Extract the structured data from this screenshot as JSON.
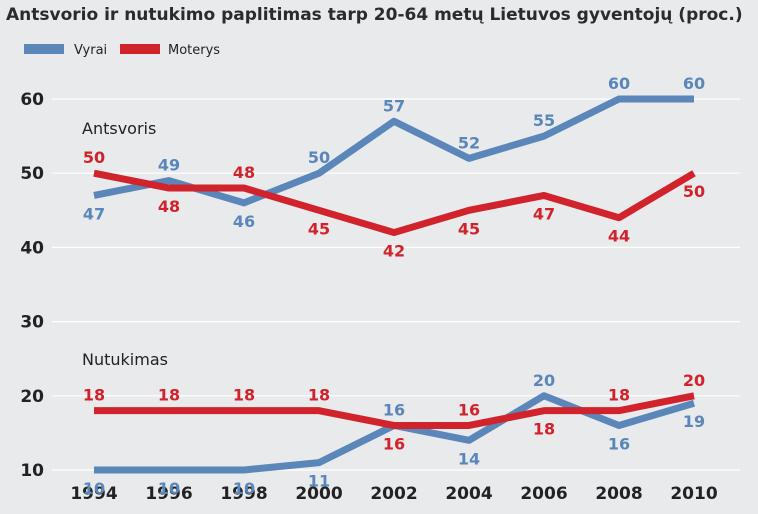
{
  "colors": {
    "vyrai": "#5b86b9",
    "moterys": "#d1232b",
    "background": "#e8eaec",
    "grid": "#ffffff"
  },
  "chart_data": {
    "type": "line",
    "title": "Antsvorio ir nutukimo paplitimas tarp 20-64 metų Lietuvos gyventojų (proc.)",
    "x": [
      1994,
      1996,
      1998,
      2000,
      2002,
      2004,
      2006,
      2008,
      2010
    ],
    "ylim": [
      10,
      60
    ],
    "yticks": [
      10,
      20,
      30,
      40,
      50,
      60
    ],
    "grid": true,
    "legend": [
      "Vyrai",
      "Moterys"
    ],
    "legend_position": "top-left",
    "groups": [
      {
        "label": "Antsvoris",
        "series": [
          {
            "name": "Vyrai",
            "color": "#5b86b9",
            "values": [
              47,
              49,
              46,
              50,
              57,
              52,
              55,
              60,
              60
            ]
          },
          {
            "name": "Moterys",
            "color": "#d1232b",
            "values": [
              50,
              48,
              48,
              45,
              42,
              45,
              47,
              44,
              50
            ]
          }
        ]
      },
      {
        "label": "Nutukimas",
        "series": [
          {
            "name": "Vyrai",
            "color": "#5b86b9",
            "values": [
              10,
              10,
              10,
              11,
              16,
              14,
              20,
              16,
              19
            ]
          },
          {
            "name": "Moterys",
            "color": "#d1232b",
            "values": [
              18,
              18,
              18,
              18,
              16,
              16,
              18,
              18,
              20
            ]
          }
        ]
      }
    ]
  }
}
